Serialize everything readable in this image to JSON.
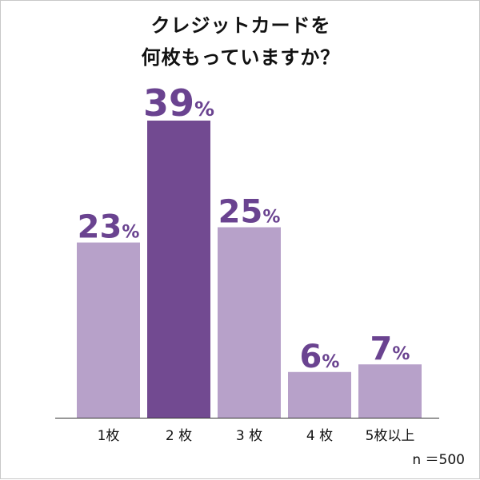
{
  "chart_data": {
    "type": "bar",
    "title_lines": [
      "クレジットカードを",
      "何枚もっていますか？"
    ],
    "categories": [
      "1枚",
      "2 枚",
      "3 枚",
      "4 枚",
      "5枚以上"
    ],
    "values": [
      23,
      39,
      25,
      6,
      7
    ],
    "value_labels": [
      "23",
      "39",
      "25",
      "6",
      "7"
    ],
    "unit": "%",
    "highlight_index": 1,
    "colors": {
      "bar": "#b7a1c9",
      "highlight": "#724a91",
      "label": "#6a4390",
      "axis": "#333333"
    },
    "xlabel": "",
    "ylabel": "",
    "ylim": [
      0,
      39
    ],
    "grid": false,
    "legend": "none"
  },
  "sample_size": "n ＝500"
}
